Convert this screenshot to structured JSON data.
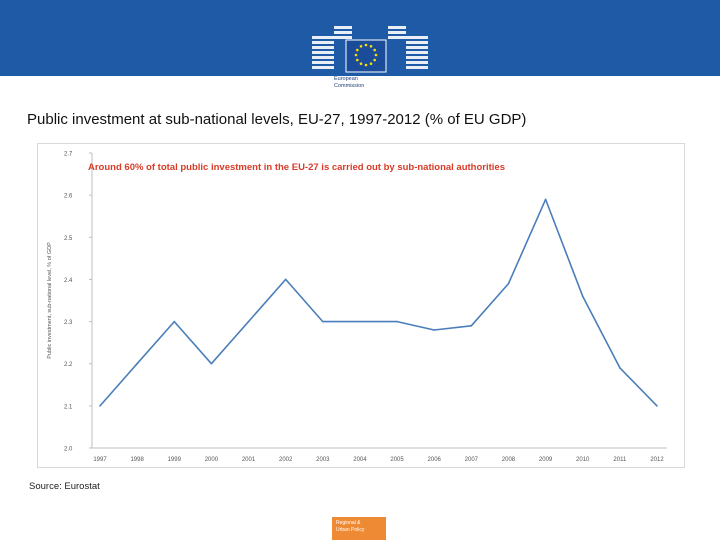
{
  "header": {
    "logo_icon": "european-commission-logo",
    "logo_line1": "European",
    "logo_line2": "Commission"
  },
  "slide_title": "Public investment at sub-national levels, EU-27, 1997-2012 (% of EU GDP)",
  "annotation": "Around 60% of total public investment in the EU-27 is carried out by sub-national authorities",
  "source": "Source: Eurostat",
  "footer": {
    "badge_line1": "Regional &",
    "badge_line2": "Urban Policy"
  },
  "chart_data": {
    "type": "line",
    "x": [
      "1997",
      "1998",
      "1999",
      "2000",
      "2001",
      "2002",
      "2003",
      "2004",
      "2005",
      "2006",
      "2007",
      "2008",
      "2009",
      "2010",
      "2011",
      "2012"
    ],
    "series": [
      {
        "values": [
          2.1,
          2.2,
          2.3,
          2.2,
          2.3,
          2.4,
          2.3,
          2.3,
          2.3,
          2.28,
          2.29,
          2.39,
          2.59,
          2.36,
          2.19,
          2.1
        ]
      }
    ],
    "ylabel": "Public investment, sub-national level, % of GDP",
    "yticks": [
      "2.0",
      "2.1",
      "2.2",
      "2.3",
      "2.4",
      "2.5",
      "2.6",
      "2.7"
    ],
    "ylim": [
      2.0,
      2.7
    ],
    "line_color": "#4a7ebb",
    "grid": false
  }
}
